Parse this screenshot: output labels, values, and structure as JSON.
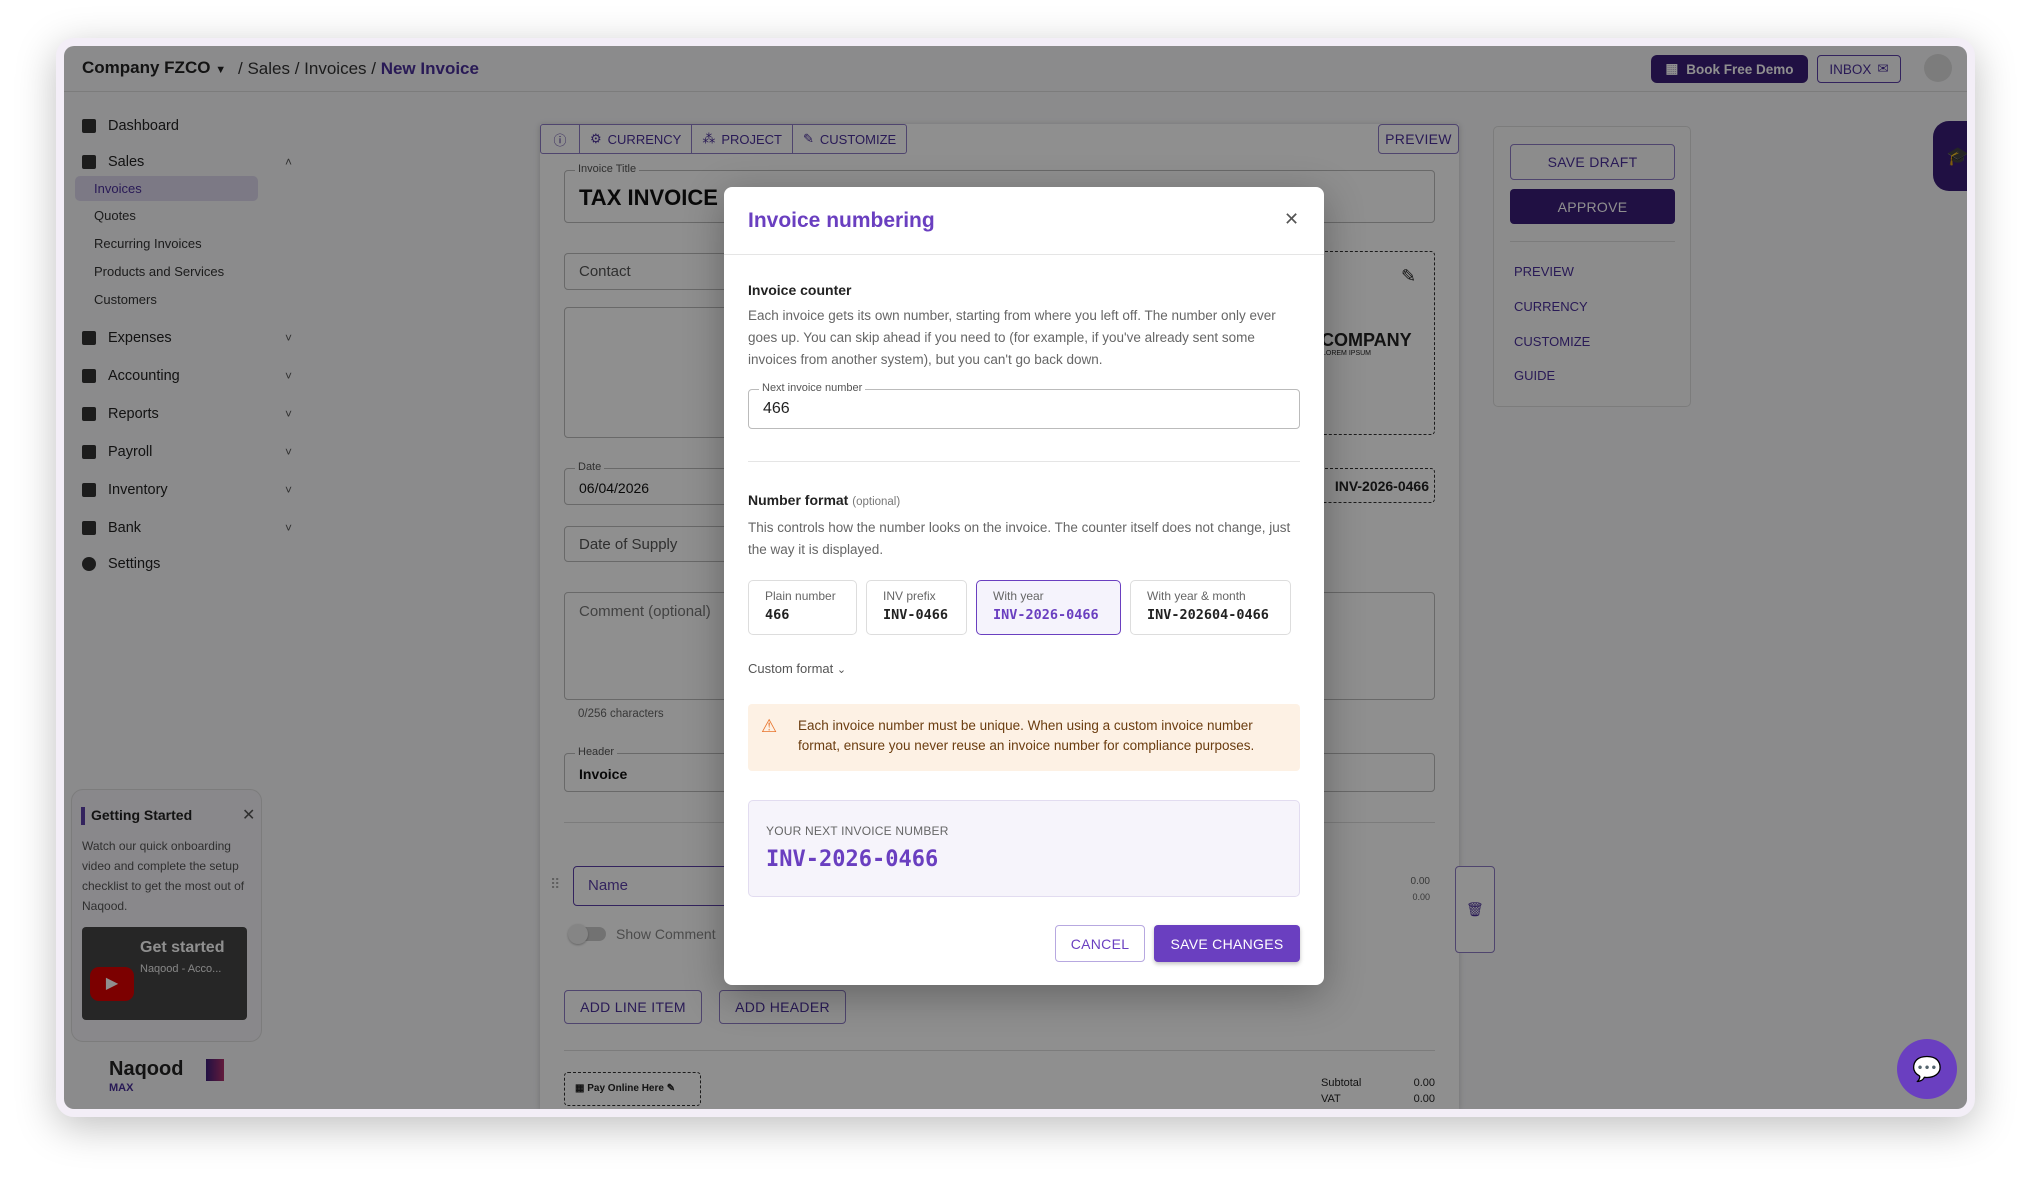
{
  "topbar": {
    "company": "Company FZCO",
    "breadcrumb": [
      "Sales",
      "Invoices",
      "New Invoice"
    ],
    "book_demo": "Book Free Demo",
    "inbox": "INBOX"
  },
  "sidebar": {
    "items": [
      {
        "label": "Dashboard"
      },
      {
        "label": "Sales"
      },
      {
        "label": "Expenses"
      },
      {
        "label": "Accounting"
      },
      {
        "label": "Reports"
      },
      {
        "label": "Payroll"
      },
      {
        "label": "Inventory"
      },
      {
        "label": "Bank"
      },
      {
        "label": "Settings"
      }
    ],
    "sales_sub": [
      "Invoices",
      "Quotes",
      "Recurring Invoices",
      "Products and Services",
      "Customers"
    ],
    "active_sub": "Invoices"
  },
  "getting_started": {
    "title": "Getting Started",
    "text": "Watch our quick onboarding video and complete the setup checklist to get the most out of Naqood.",
    "video_title": "Get started",
    "video_sub": "Naqood - Acco..."
  },
  "brand": {
    "name": "Naqood",
    "tier": "MAX"
  },
  "invoice": {
    "toolbar": [
      "CURRENCY",
      "PROJECT",
      "CUSTOMIZE"
    ],
    "preview": "PREVIEW",
    "title_label": "Invoice Title",
    "title": "TAX INVOICE",
    "contact": "Contact",
    "logo_text": "COMPANY",
    "logo_sub": "LOREM IPSUM",
    "date_label": "Date",
    "date": "06/04/2026",
    "number": "INV-2026-0466",
    "supply": "Date of Supply",
    "comment": "Comment (optional)",
    "chars": "0/256 characters",
    "header_label": "Header",
    "header": "Invoice",
    "name": "Name",
    "show_comment": "Show Comment",
    "amt1": "0.00",
    "amt2": "0.00",
    "add_line": "ADD LINE ITEM",
    "add_header": "ADD HEADER",
    "pay_online": "Pay Online Here",
    "subtotal_label": "Subtotal",
    "subtotal": "0.00",
    "vat_label": "VAT",
    "vat": "0.00"
  },
  "actions": {
    "save_draft": "SAVE DRAFT",
    "approve": "APPROVE",
    "links": [
      "PREVIEW",
      "CURRENCY",
      "CUSTOMIZE",
      "GUIDE"
    ]
  },
  "modal": {
    "title": "Invoice numbering",
    "counter_heading": "Invoice counter",
    "counter_text": "Each invoice gets its own number, starting from where you left off. The number only ever goes up. You can skip ahead if you need to (for example, if you've already sent some invoices from another system), but you can't go back down.",
    "next_label": "Next invoice number",
    "next_value": "466",
    "format_heading": "Number format",
    "format_optional": "(optional)",
    "format_text": "This controls how the number looks on the invoice. The counter itself does not change, just the way it is displayed.",
    "formats": [
      {
        "label": "Plain number",
        "value": "466"
      },
      {
        "label": "INV prefix",
        "value": "INV-0466"
      },
      {
        "label": "With year",
        "value": "INV-2026-0466",
        "selected": true
      },
      {
        "label": "With year & month",
        "value": "INV-202604-0466"
      }
    ],
    "custom_format": "Custom format",
    "warning": "Each invoice number must be unique. When using a custom invoice number format, ensure you never reuse an invoice number for compliance purposes.",
    "preview_label": "YOUR NEXT INVOICE NUMBER",
    "preview_value": "INV-2026-0466",
    "cancel": "CANCEL",
    "save": "SAVE CHANGES"
  },
  "colors": {
    "accent": "#6a3fc0",
    "dark_accent": "#3a1d78",
    "warning_bg": "#fdf1e4",
    "warning_icon": "#e8742c"
  }
}
